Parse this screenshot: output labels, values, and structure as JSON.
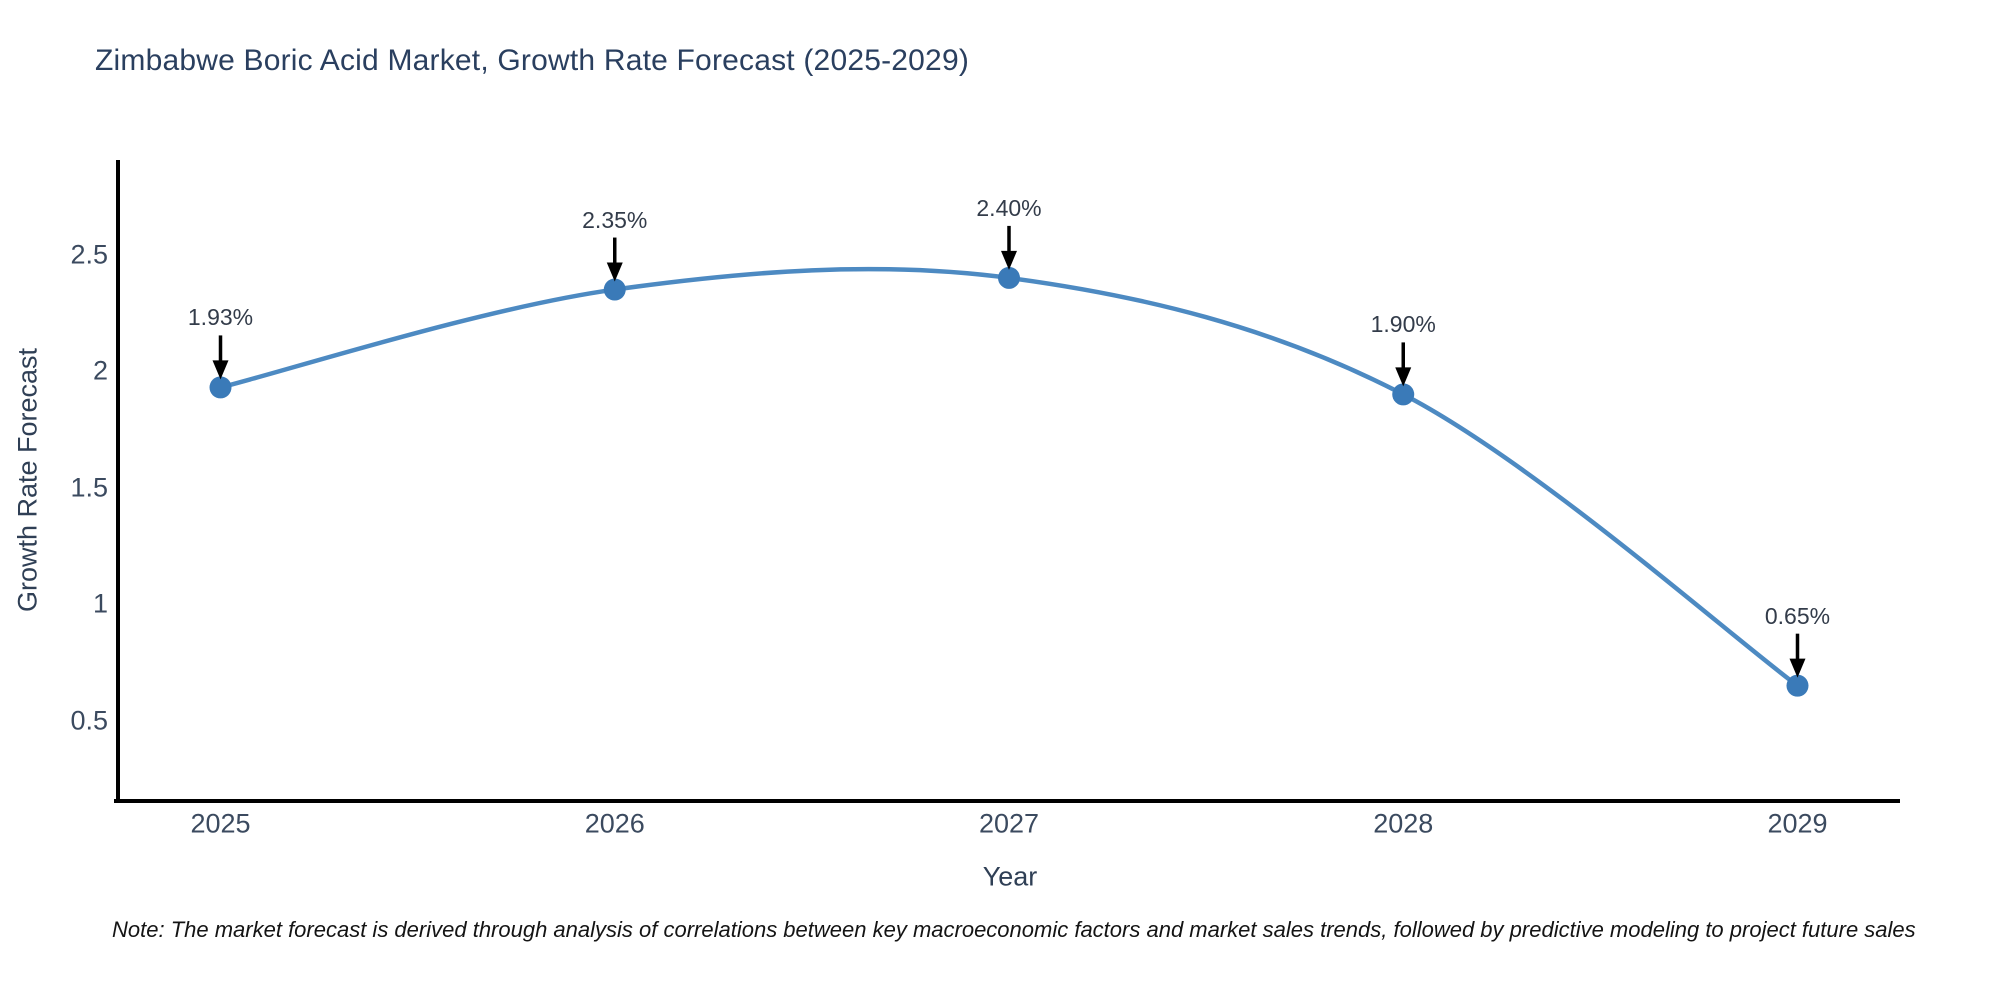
{
  "page": {
    "note": "Note: The market forecast is derived through analysis of correlations between key macroeconomic factors and market sales trends, followed by predictive modeling to project future sales"
  },
  "chart_data": {
    "type": "line",
    "title": "Zimbabwe Boric Acid Market, Growth Rate Forecast (2025-2029)",
    "xlabel": "Year",
    "ylabel": "Growth Rate Forecast",
    "categories": [
      2025,
      2026,
      2027,
      2028,
      2029
    ],
    "values": [
      1.93,
      2.35,
      2.4,
      1.9,
      0.65
    ],
    "point_labels": [
      "1.93%",
      "2.35%",
      "2.40%",
      "1.90%",
      "0.65%"
    ],
    "yticks": [
      2.5,
      2,
      1.5,
      1,
      0.5
    ],
    "xlim": [
      2024.74,
      2029.26
    ],
    "ylim": [
      0.155,
      2.906
    ],
    "grid": false,
    "legend_position": "none",
    "line_shape": "spline",
    "colors": {
      "line": "#4d8ac2",
      "marker": "#3a7ab8",
      "annotation_arrow": "#000000",
      "axis": "#000000",
      "title_text": "#2a3f5f"
    }
  }
}
